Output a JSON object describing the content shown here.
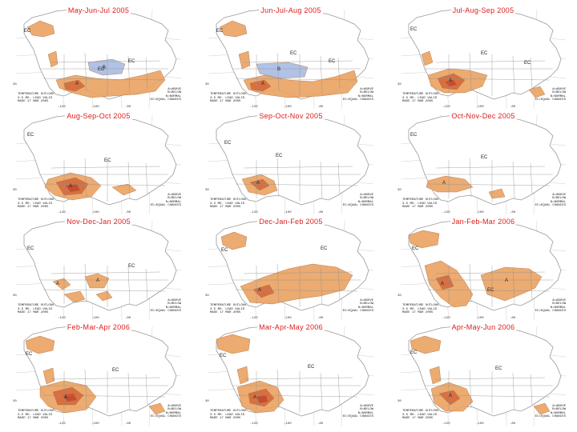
{
  "figure": {
    "colors": {
      "above": "#e9a465",
      "above_strong": "#d46a3e",
      "core": "#c24a2c",
      "below": "#a9bde3",
      "land": "#ffffff",
      "line": "#9a9a9a"
    },
    "caption_lines": [
      "TEMPERATURE OUTLOOK",
      "3.5 MO. LEAD VALID",
      "MADE 17 MAR 2005"
    ],
    "credit_lines": [
      "A=ABOVE",
      "B=BELOW",
      "N=NORMAL",
      "EC=EQUAL CHANCES"
    ],
    "longitude_ticks": [
      "-120",
      "-100",
      "-80"
    ],
    "latitude_ticks": [
      "30"
    ],
    "panels": [
      {
        "title": "May-Jun-Jul 2005",
        "labels": [
          "EC",
          "EC",
          "EC",
          "A",
          "B"
        ]
      },
      {
        "title": "Jun-Jul-Aug 2005",
        "labels": [
          "EC",
          "EC",
          "EC",
          "A",
          "B"
        ]
      },
      {
        "title": "Jul-Aug-Sep 2005",
        "labels": [
          "EC",
          "EC",
          "EC",
          "A"
        ]
      },
      {
        "title": "Aug-Sep-Oct 2005",
        "labels": [
          "EC",
          "EC",
          "A"
        ]
      },
      {
        "title": "Sep-Oct-Nov 2005",
        "labels": [
          "EC",
          "EC",
          "A"
        ]
      },
      {
        "title": "Oct-Nov-Dec 2005",
        "labels": [
          "EC",
          "EC",
          "A"
        ]
      },
      {
        "title": "Nov-Dec-Jan 2005",
        "labels": [
          "EC",
          "EC",
          "A",
          "A"
        ]
      },
      {
        "title": "Dec-Jan-Feb 2005",
        "labels": [
          "EC",
          "EC",
          "A"
        ]
      },
      {
        "title": "Jan-Feb-Mar 2006",
        "labels": [
          "EC",
          "EC",
          "A",
          "A"
        ]
      },
      {
        "title": "Feb-Mar-Apr 2006",
        "labels": [
          "EC",
          "EC",
          "A"
        ]
      },
      {
        "title": "Mar-Apr-May 2006",
        "labels": [
          "EC",
          "EC",
          "A"
        ]
      },
      {
        "title": "Apr-May-Jun 2006",
        "labels": [
          "EC",
          "EC",
          "A"
        ]
      }
    ]
  }
}
